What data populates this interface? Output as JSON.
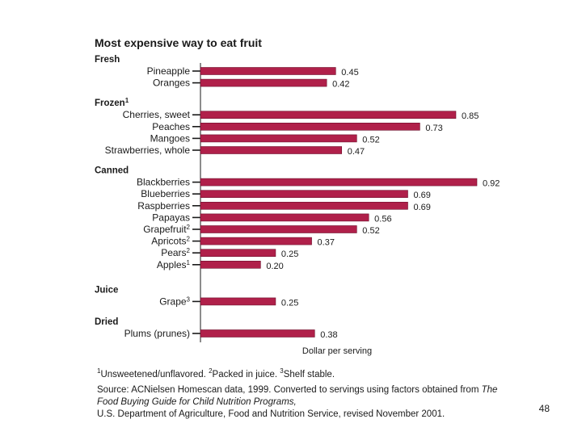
{
  "colors": {
    "bar": "#b0204a",
    "bar_edge": "#6e0f2c",
    "text": "#1a1a1a"
  },
  "chart_data": {
    "type": "bar",
    "orientation": "horizontal",
    "title": "Most expensive way to eat fruit",
    "xlabel": "Dollar per serving",
    "ylabel": "",
    "xlim": [
      0,
      0.92
    ],
    "groups": [
      {
        "name": "Fresh",
        "items": [
          {
            "label": "Pineapple",
            "value": 0.45,
            "value_label": "0.45"
          },
          {
            "label": "Oranges",
            "value": 0.42,
            "value_label": "0.42"
          }
        ]
      },
      {
        "name": "Frozen",
        "sup": "1",
        "items": [
          {
            "label": "Cherries, sweet",
            "value": 0.85,
            "value_label": "0.85"
          },
          {
            "label": "Peaches",
            "value": 0.73,
            "value_label": "0.73"
          },
          {
            "label": "Mangoes",
            "value": 0.52,
            "value_label": "0.52"
          },
          {
            "label": "Strawberries, whole",
            "value": 0.47,
            "value_label": "0.47"
          }
        ]
      },
      {
        "name": "Canned",
        "items": [
          {
            "label": "Blackberries",
            "value": 0.92,
            "value_label": "0.92"
          },
          {
            "label": "Blueberries",
            "value": 0.69,
            "value_label": "0.69"
          },
          {
            "label": "Raspberries",
            "value": 0.69,
            "value_label": "0.69"
          },
          {
            "label": "Papayas",
            "value": 0.56,
            "value_label": "0.56"
          },
          {
            "label": "Grapefruit",
            "sup": "2",
            "value": 0.52,
            "value_label": "0.52"
          },
          {
            "label": "Apricots",
            "sup": "2",
            "value": 0.37,
            "value_label": "0.37"
          },
          {
            "label": "Pears",
            "sup": "2",
            "value": 0.25,
            "value_label": "0.25"
          },
          {
            "label": "Apples",
            "sup": "1",
            "value": 0.2,
            "value_label": "0.20"
          }
        ]
      },
      {
        "name": "Juice",
        "items": [
          {
            "label": "Grape",
            "sup": "3",
            "value": 0.25,
            "value_label": "0.25"
          }
        ]
      },
      {
        "name": "Dried",
        "items": [
          {
            "label": "Plums (prunes)",
            "value": 0.38,
            "value_label": "0.38"
          }
        ]
      }
    ]
  },
  "footnotes": {
    "n1_mark": "1",
    "n1_text": "Unsweetened/unflavored.",
    "n2_mark": "2",
    "n2_text": "Packed in juice.",
    "n3_mark": "3",
    "n3_text": "Shelf stable."
  },
  "source": {
    "prefix": "Source: ACNielsen Homescan data, 1999. Converted to servings using factors obtained from",
    "italic": "The Food Buying Guide for Child Nutrition Programs,",
    "suffix": "U.S. Department of Agriculture, Food and Nutrition Service, revised November 2001."
  },
  "page_number": "48"
}
